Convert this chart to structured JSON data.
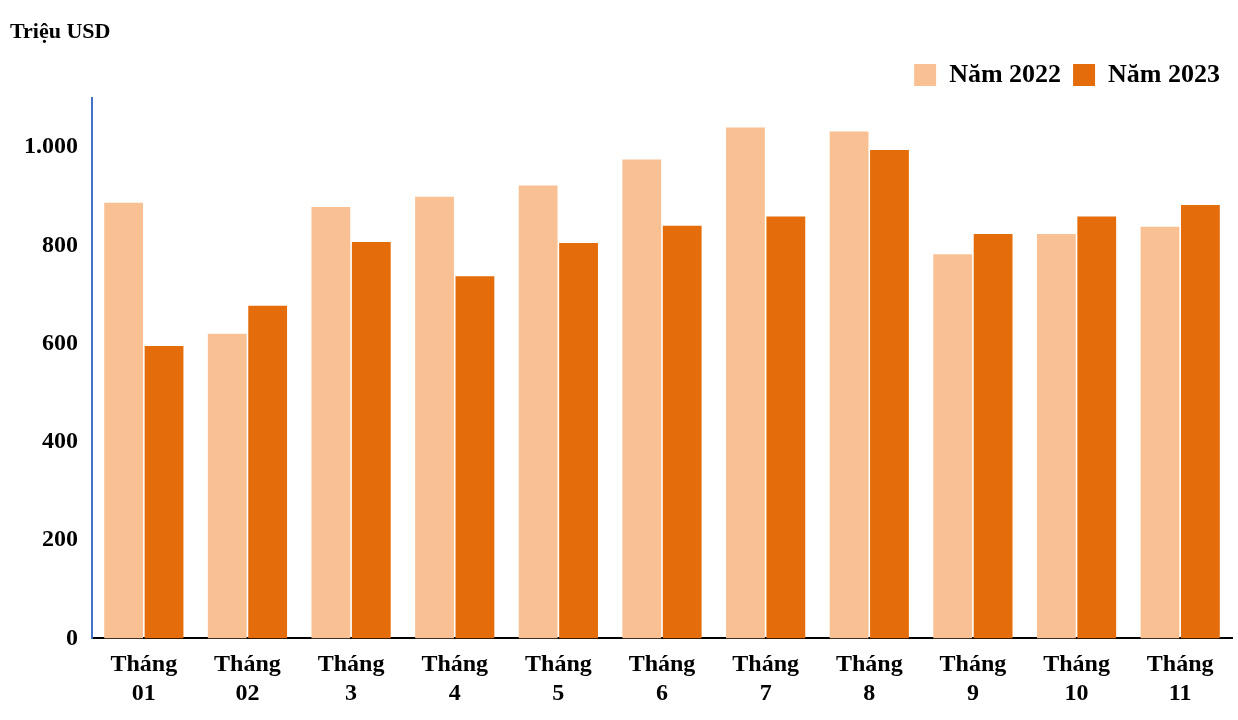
{
  "chart_data": {
    "type": "bar",
    "ylabel": "Triệu USD",
    "categories": [
      "Tháng 01",
      "Tháng 02",
      "Tháng 3",
      "Tháng 4",
      "Tháng 5",
      "Tháng 6",
      "Tháng 7",
      "Tháng 8",
      "Tháng 9",
      "Tháng 10",
      "Tháng 11"
    ],
    "series": [
      {
        "name": "Năm 2022",
        "color": "#f9c193",
        "values": [
          887,
          620,
          878,
          899,
          922,
          975,
          1040,
          1032,
          782,
          823,
          838
        ]
      },
      {
        "name": "Năm 2023",
        "color": "#e46c0a",
        "values": [
          595,
          677,
          807,
          737,
          805,
          840,
          859,
          994,
          823,
          859,
          882
        ]
      }
    ],
    "ylim": [
      0,
      1100
    ],
    "yticks": [
      0,
      200,
      400,
      600,
      800,
      {
        "value": 1000,
        "label": "1.000"
      }
    ],
    "grid": false,
    "legend": "top right"
  }
}
